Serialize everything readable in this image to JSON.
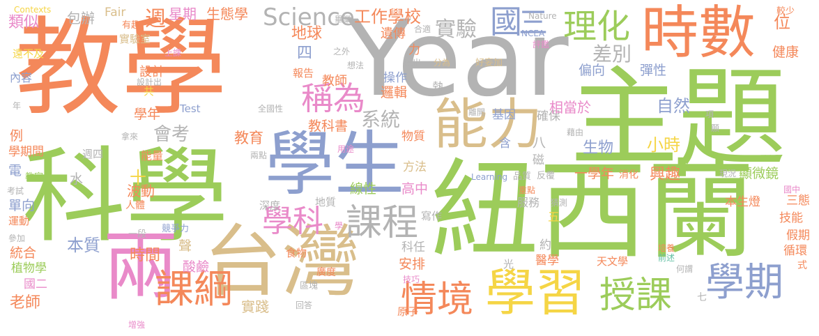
{
  "palette": {
    "orange": "#f4885a",
    "green": "#9ccc5a",
    "blue": "#8d9fce",
    "pink": "#e98ac9",
    "tan": "#d9be8b",
    "gray": "#b3b3b3",
    "yellow": "#f5d545",
    "teal": "#67c2a7"
  },
  "words": [
    {
      "text": "教學",
      "color": "orange"
    },
    {
      "text": "Year",
      "color": "gray"
    },
    {
      "text": "主題",
      "color": "green"
    },
    {
      "text": "紐西蘭",
      "color": "green"
    },
    {
      "text": "科學",
      "color": "green"
    },
    {
      "text": "台灣",
      "color": "tan"
    },
    {
      "text": "學生",
      "color": "blue"
    },
    {
      "text": "時數",
      "color": "orange"
    },
    {
      "text": "能力",
      "color": "tan"
    },
    {
      "text": "兩",
      "color": "pink"
    },
    {
      "text": "學習",
      "color": "yellow"
    },
    {
      "text": "情境",
      "color": "orange"
    },
    {
      "text": "授課",
      "color": "green"
    },
    {
      "text": "學期",
      "color": "blue"
    },
    {
      "text": "課綱",
      "color": "orange"
    },
    {
      "text": "課程",
      "color": "gray"
    },
    {
      "text": "學科",
      "color": "pink"
    },
    {
      "text": "稱為",
      "color": "pink"
    },
    {
      "text": "理化",
      "color": "green"
    },
    {
      "text": "國",
      "color": "blue"
    },
    {
      "text": "三",
      "color": "blue"
    },
    {
      "text": "Science",
      "color": "gray"
    },
    {
      "text": "實驗",
      "color": "gray"
    },
    {
      "text": "差別",
      "color": "gray"
    },
    {
      "text": "工作學校",
      "color": "orange"
    },
    {
      "text": "生態學",
      "color": "orange"
    },
    {
      "text": "星期",
      "color": "pink"
    },
    {
      "text": "週",
      "color": "orange"
    },
    {
      "text": "包辦",
      "color": "gray"
    },
    {
      "text": "Fair",
      "color": "tan"
    },
    {
      "text": "類似",
      "color": "pink"
    },
    {
      "text": "Contexts",
      "color": "yellow"
    },
    {
      "text": "有趣",
      "color": "orange"
    },
    {
      "text": "實驗室",
      "color": "tan"
    },
    {
      "text": "遠不及",
      "color": "yellow"
    },
    {
      "text": "內容",
      "color": "blue"
    },
    {
      "text": "設計",
      "color": "orange"
    },
    {
      "text": "上課",
      "color": "pink"
    },
    {
      "text": "地球",
      "color": "orange"
    },
    {
      "text": "四",
      "color": "blue"
    },
    {
      "text": "教師",
      "color": "orange"
    },
    {
      "text": "遺傳",
      "color": "orange"
    },
    {
      "text": "報告",
      "color": "orange"
    },
    {
      "text": "操作",
      "color": "blue"
    },
    {
      "text": "邏輯",
      "color": "orange"
    },
    {
      "text": "系統",
      "color": "gray"
    },
    {
      "text": "教科書",
      "color": "orange"
    },
    {
      "text": "教育",
      "color": "orange"
    },
    {
      "text": "會考",
      "color": "gray"
    },
    {
      "text": "學年",
      "color": "orange"
    },
    {
      "text": "Test",
      "color": "blue"
    },
    {
      "text": "例",
      "color": "orange"
    },
    {
      "text": "學期間",
      "color": "orange"
    },
    {
      "text": "週四",
      "color": "gray"
    },
    {
      "text": "能量",
      "color": "orange"
    },
    {
      "text": "兩點",
      "color": "gray"
    },
    {
      "text": "電",
      "color": "blue"
    },
    {
      "text": "教室",
      "color": "green"
    },
    {
      "text": "水",
      "color": "gray"
    },
    {
      "text": "十",
      "color": "yellow"
    },
    {
      "text": "波動",
      "color": "orange"
    },
    {
      "text": "人體",
      "color": "orange"
    },
    {
      "text": "考試",
      "color": "gray"
    },
    {
      "text": "單向",
      "color": "blue"
    },
    {
      "text": "運動",
      "color": "orange"
    },
    {
      "text": "參加",
      "color": "gray"
    },
    {
      "text": "統合",
      "color": "orange"
    },
    {
      "text": "植物學",
      "color": "green"
    },
    {
      "text": "國二",
      "color": "pink"
    },
    {
      "text": "老師",
      "color": "orange"
    },
    {
      "text": "本質",
      "color": "blue"
    },
    {
      "text": "時間",
      "color": "orange"
    },
    {
      "text": "一段",
      "color": "gray"
    },
    {
      "text": "競爭力",
      "color": "blue"
    },
    {
      "text": "聲",
      "color": "tan"
    },
    {
      "text": "酸鹼",
      "color": "pink"
    },
    {
      "text": "增強",
      "color": "pink"
    },
    {
      "text": "實踐",
      "color": "tan"
    },
    {
      "text": "區塊",
      "color": "gray"
    },
    {
      "text": "回答",
      "color": "gray"
    },
    {
      "text": "廣度",
      "color": "orange"
    },
    {
      "text": "技巧",
      "color": "pink"
    },
    {
      "text": "原子",
      "color": "orange"
    },
    {
      "text": "食物",
      "color": "orange"
    },
    {
      "text": "深度",
      "color": "gray"
    },
    {
      "text": "地質",
      "color": "gray"
    },
    {
      "text": "寫作",
      "color": "gray"
    },
    {
      "text": "線性",
      "color": "green"
    },
    {
      "text": "高中",
      "color": "pink"
    },
    {
      "text": "安排",
      "color": "orange"
    },
    {
      "text": "科任",
      "color": "gray"
    },
    {
      "text": "物質",
      "color": "orange"
    },
    {
      "text": "方法",
      "color": "tan"
    },
    {
      "text": "用途",
      "color": "pink"
    },
    {
      "text": "之外",
      "color": "gray"
    },
    {
      "text": "提出",
      "color": "gray"
    },
    {
      "text": "想法",
      "color": "gray"
    },
    {
      "text": "熱",
      "color": "gray"
    },
    {
      "text": "含",
      "color": "blue"
    },
    {
      "text": "離開",
      "color": "gray"
    },
    {
      "text": "基因",
      "color": "blue"
    },
    {
      "text": "確保",
      "color": "gray"
    },
    {
      "text": "八",
      "color": "gray"
    },
    {
      "text": "磁",
      "color": "gray"
    },
    {
      "text": "自然",
      "color": "blue"
    },
    {
      "text": "小時",
      "color": "yellow"
    },
    {
      "text": "生物",
      "color": "blue"
    },
    {
      "text": "相當於",
      "color": "pink"
    },
    {
      "text": "偏向",
      "color": "blue"
    },
    {
      "text": "彈性",
      "color": "blue"
    },
    {
      "text": "健康",
      "color": "orange"
    },
    {
      "text": "位",
      "color": "orange"
    },
    {
      "text": "較少",
      "color": "orange"
    },
    {
      "text": "Nature",
      "color": "gray"
    },
    {
      "text": "畢業",
      "color": "gray"
    },
    {
      "text": "NCEA",
      "color": "blue"
    },
    {
      "text": "合適",
      "color": "gray"
    },
    {
      "text": "評鑑",
      "color": "pink"
    },
    {
      "text": "力",
      "color": "orange"
    },
    {
      "text": "分為",
      "color": "tan"
    },
    {
      "text": "好妄加",
      "color": "tan"
    },
    {
      "text": "藉由",
      "color": "gray"
    },
    {
      "text": "項",
      "color": "gray"
    },
    {
      "text": "願",
      "color": "gray"
    },
    {
      "text": "一學年",
      "color": "orange"
    },
    {
      "text": "興趣",
      "color": "orange"
    },
    {
      "text": "消化",
      "color": "orange"
    },
    {
      "text": "顯微鏡",
      "color": "green"
    },
    {
      "text": "反覆",
      "color": "gray"
    },
    {
      "text": "品質",
      "color": "gray"
    },
    {
      "text": "Learning",
      "color": "blue"
    },
    {
      "text": "現況",
      "color": "gray"
    },
    {
      "text": "國中",
      "color": "pink"
    },
    {
      "text": "重點",
      "color": "orange"
    },
    {
      "text": "猜測",
      "color": "gray"
    },
    {
      "text": "服務",
      "color": "gray"
    },
    {
      "text": "本生燈",
      "color": "orange"
    },
    {
      "text": "三態",
      "color": "orange"
    },
    {
      "text": "技能",
      "color": "orange"
    },
    {
      "text": "假期",
      "color": "orange"
    },
    {
      "text": "循環",
      "color": "orange"
    },
    {
      "text": "式",
      "color": "orange"
    },
    {
      "text": "五",
      "color": "yellow"
    },
    {
      "text": "約",
      "color": "gray"
    },
    {
      "text": "醫學",
      "color": "orange"
    },
    {
      "text": "光",
      "color": "gray"
    },
    {
      "text": "天文學",
      "color": "orange"
    },
    {
      "text": "培養",
      "color": "orange"
    },
    {
      "text": "前述",
      "color": "teal"
    },
    {
      "text": "何謂",
      "color": "gray"
    },
    {
      "text": "七",
      "color": "gray"
    },
    {
      "text": "學",
      "color": "pink"
    },
    {
      "text": "拿來",
      "color": "gray"
    },
    {
      "text": "年",
      "color": "gray"
    },
    {
      "text": "共",
      "color": "yellow"
    },
    {
      "text": "設計出",
      "color": "gray"
    },
    {
      "text": "全國性",
      "color": "gray"
    }
  ]
}
